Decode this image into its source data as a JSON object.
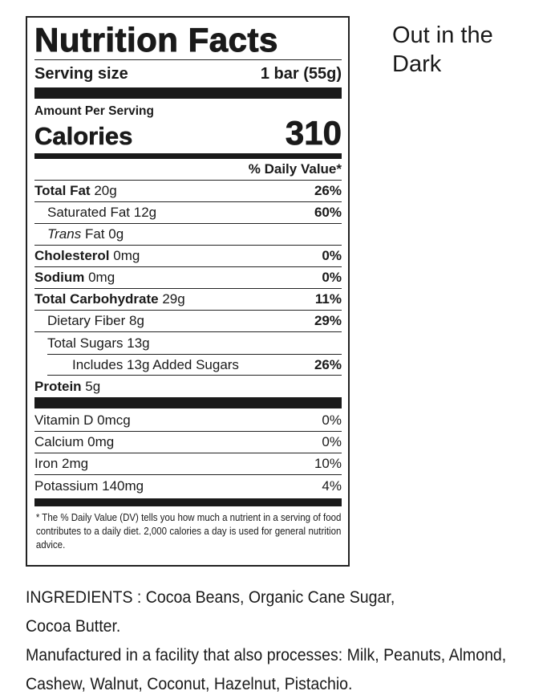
{
  "product_name": "Out in the Dark",
  "label": {
    "title": "Nutrition Facts",
    "serving_size_label": "Serving size",
    "serving_size_value": "1 bar (55g)",
    "amount_per_serving": "Amount Per Serving",
    "calories_label": "Calories",
    "calories_value": "310",
    "daily_value_header": "% Daily Value*",
    "nutrients": [
      {
        "name": "Total Fat",
        "amount": "20g",
        "dv": "26%"
      },
      {
        "name": "Saturated Fat",
        "amount": "12g",
        "dv": "60%"
      },
      {
        "name": "Trans",
        "name_suffix": "Fat",
        "amount": "0g",
        "dv": ""
      },
      {
        "name": "Cholesterol",
        "amount": "0mg",
        "dv": "0%"
      },
      {
        "name": "Sodium",
        "amount": "0mg",
        "dv": "0%"
      },
      {
        "name": "Total Carbohydrate",
        "amount": "29g",
        "dv": "11%"
      },
      {
        "name": "Dietary Fiber",
        "amount": "8g",
        "dv": "29%"
      },
      {
        "name": "Total Sugars",
        "amount": "13g",
        "dv": ""
      },
      {
        "name": "Includes 13g Added Sugars",
        "amount": "",
        "dv": "26%"
      },
      {
        "name": "Protein",
        "amount": "5g",
        "dv": ""
      }
    ],
    "vitamins": [
      {
        "name": "Vitamin D",
        "amount": "0mcg",
        "dv": "0%"
      },
      {
        "name": "Calcium",
        "amount": "0mg",
        "dv": "0%"
      },
      {
        "name": "Iron",
        "amount": "2mg",
        "dv": "10%"
      },
      {
        "name": "Potassium",
        "amount": "140mg",
        "dv": "4%"
      }
    ],
    "footnote": "* The % Daily Value (DV) tells you how much a nutrient in a serving of food contributes to a daily diet. 2,000 calories a day is used for general nutrition advice."
  },
  "ingredients": "INGREDIENTS : Cocoa Beans, Organic Cane Sugar, Cocoa Butter.",
  "allergens": "Manufactured in a facility that also processes: Milk, Peanuts, Almond, Cashew, Walnut, Coconut, Hazelnut, Pistachio."
}
